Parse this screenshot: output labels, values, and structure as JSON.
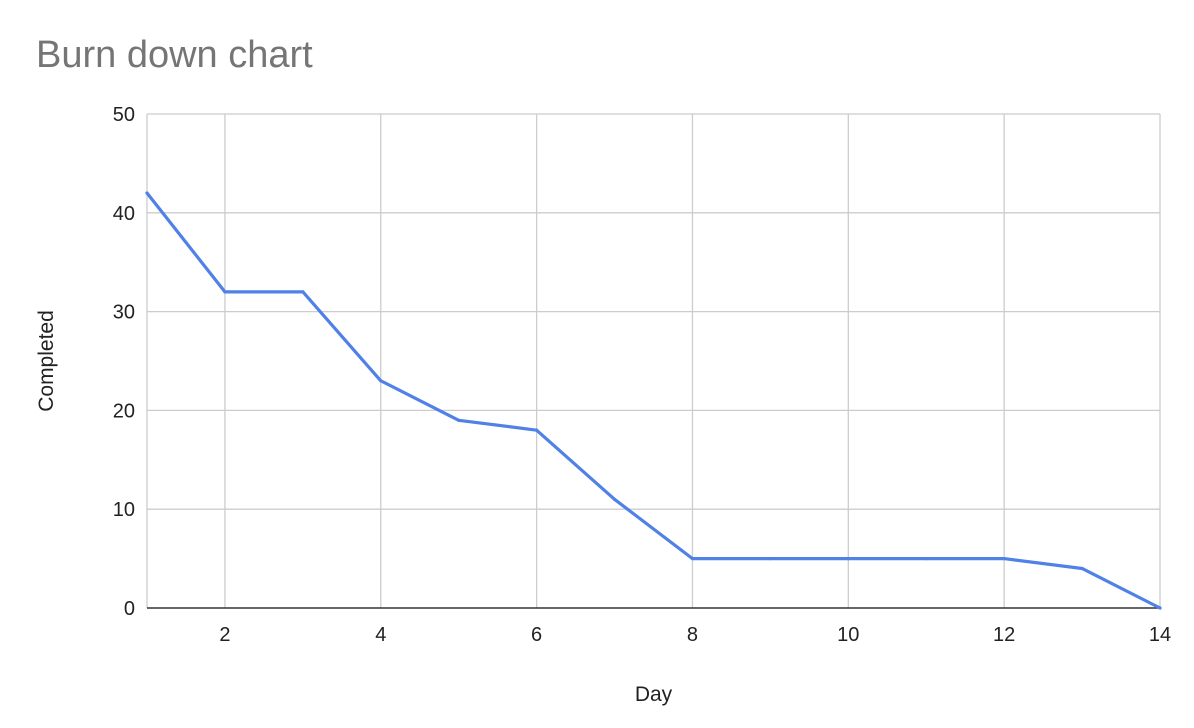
{
  "chart_data": {
    "type": "line",
    "title": "Burn down chart",
    "xlabel": "Day",
    "ylabel": "Completed",
    "xlim": [
      1,
      14
    ],
    "ylim": [
      0,
      50
    ],
    "xticks": [
      2,
      4,
      6,
      8,
      10,
      12,
      14
    ],
    "yticks": [
      0,
      10,
      20,
      30,
      40,
      50
    ],
    "grid": true,
    "legend": "none",
    "series": [
      {
        "color": "#4f81e6",
        "x": [
          1,
          2,
          3,
          4,
          5,
          6,
          7,
          8,
          9,
          10,
          11,
          12,
          13,
          14
        ],
        "y": [
          42,
          32,
          32,
          23,
          19,
          18,
          11,
          5,
          5,
          5,
          5,
          5,
          4,
          0
        ]
      }
    ]
  }
}
